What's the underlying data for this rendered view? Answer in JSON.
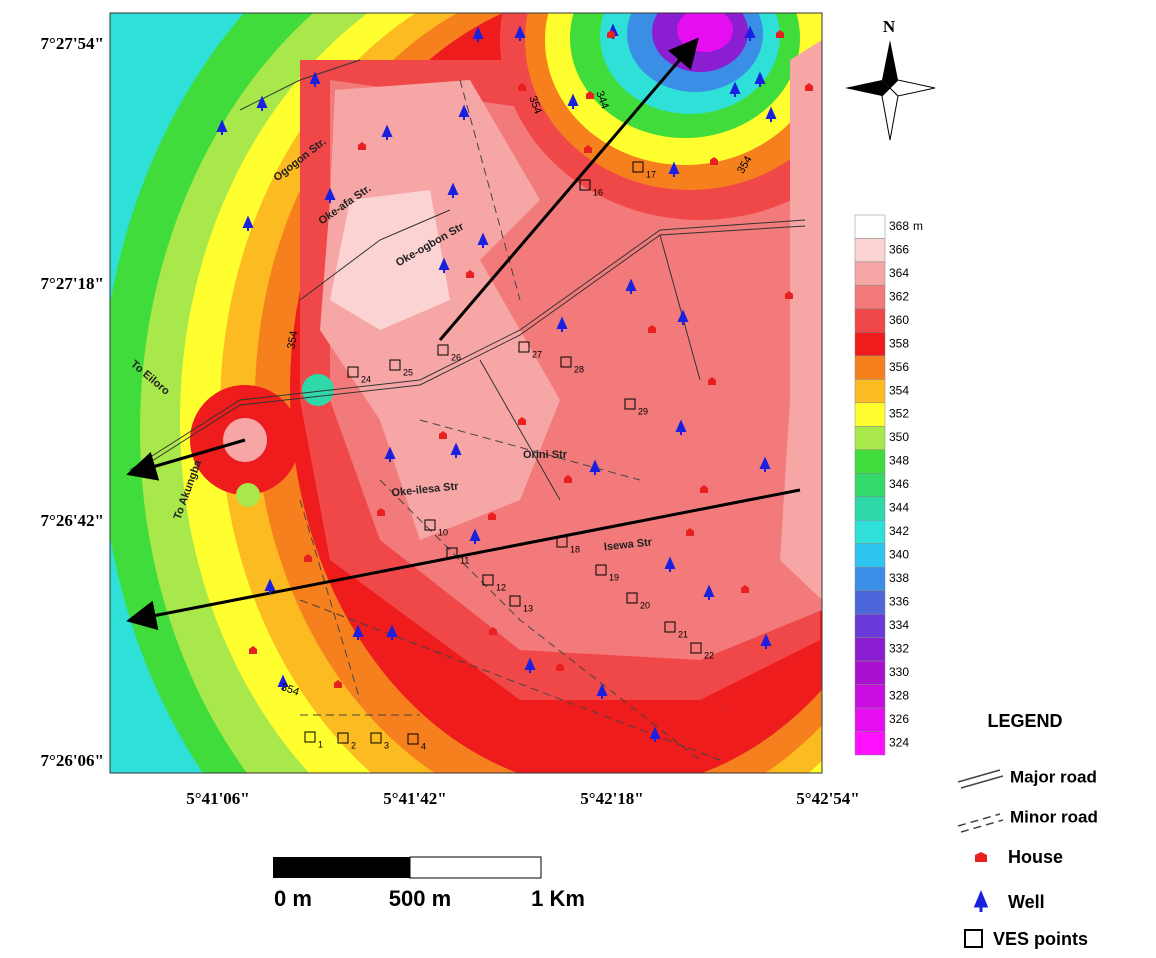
{
  "map": {
    "lat_labels": [
      "7°27'54\"",
      "7°27'18\"",
      "7°26'42\"",
      "7°26'06\""
    ],
    "lon_labels": [
      "5°41'06\"",
      "5°41'42\"",
      "5°42'18\"",
      "5°42'54\""
    ],
    "north": "N",
    "streets": [
      "Ogogon Str.",
      "Oke-afa Str.",
      "Oke-ogbon Str",
      "Oke-ilesa Str",
      "Orini Str",
      "Isewa Str",
      "To Eiloro",
      "To Akungba"
    ],
    "contour_labels": [
      "354",
      "344",
      "354",
      "354",
      "354"
    ],
    "ves_points": [
      "1",
      "2",
      "3",
      "4",
      "10",
      "11",
      "12",
      "13",
      "16",
      "17",
      "18",
      "19",
      "20",
      "21",
      "22",
      "24",
      "25",
      "26",
      "27",
      "28",
      "29"
    ],
    "colorbar": {
      "unit": "m",
      "levels": [
        {
          "value": 368,
          "color": "#ffffff"
        },
        {
          "value": 366,
          "color": "#fbd3d3"
        },
        {
          "value": 364,
          "color": "#f7a6a6"
        },
        {
          "value": 362,
          "color": "#f37a7a"
        },
        {
          "value": 360,
          "color": "#f04848"
        },
        {
          "value": 358,
          "color": "#ee1c1c"
        },
        {
          "value": 356,
          "color": "#f7801e"
        },
        {
          "value": 354,
          "color": "#fdbb22"
        },
        {
          "value": 352,
          "color": "#ffff30"
        },
        {
          "value": 350,
          "color": "#a8e84a"
        },
        {
          "value": 348,
          "color": "#3fdc3c"
        },
        {
          "value": 346,
          "color": "#35d86a"
        },
        {
          "value": 344,
          "color": "#2ed8a8"
        },
        {
          "value": 342,
          "color": "#2ee0d8"
        },
        {
          "value": 340,
          "color": "#2ec4f0"
        },
        {
          "value": 338,
          "color": "#3a8ee6"
        },
        {
          "value": 336,
          "color": "#4a66d8"
        },
        {
          "value": 334,
          "color": "#6a3ad8"
        },
        {
          "value": 332,
          "color": "#8a1ed0"
        },
        {
          "value": 330,
          "color": "#aa10d0"
        },
        {
          "value": 328,
          "color": "#c80ee0"
        },
        {
          "value": 326,
          "color": "#e40ef0"
        },
        {
          "value": 324,
          "color": "#ff10ff"
        }
      ]
    },
    "legend": {
      "title": "LEGEND",
      "items": [
        "Major road",
        "Minor road",
        "House",
        "Well",
        "VES points"
      ]
    },
    "scale_bar": [
      "0 m",
      "500 m",
      "1 Km"
    ]
  }
}
